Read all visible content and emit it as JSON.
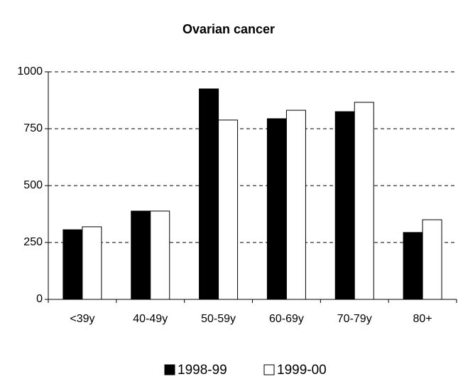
{
  "chart_data": {
    "type": "bar",
    "title": "Ovarian cancer",
    "categories": [
      "<39y",
      "40-49y",
      "50-59y",
      "60-69y",
      "70-79y",
      "80+"
    ],
    "series": [
      {
        "name": "1998-99",
        "color": "#000000",
        "values": [
          306,
          388,
          925,
          794,
          825,
          294
        ]
      },
      {
        "name": "1999-00",
        "color": "#ffffff",
        "values": [
          319,
          388,
          788,
          831,
          866,
          350
        ]
      }
    ],
    "ylim": [
      0,
      1000
    ],
    "yticks": [
      0,
      250,
      500,
      750,
      1000
    ],
    "grid": true,
    "legend": "bottom"
  }
}
